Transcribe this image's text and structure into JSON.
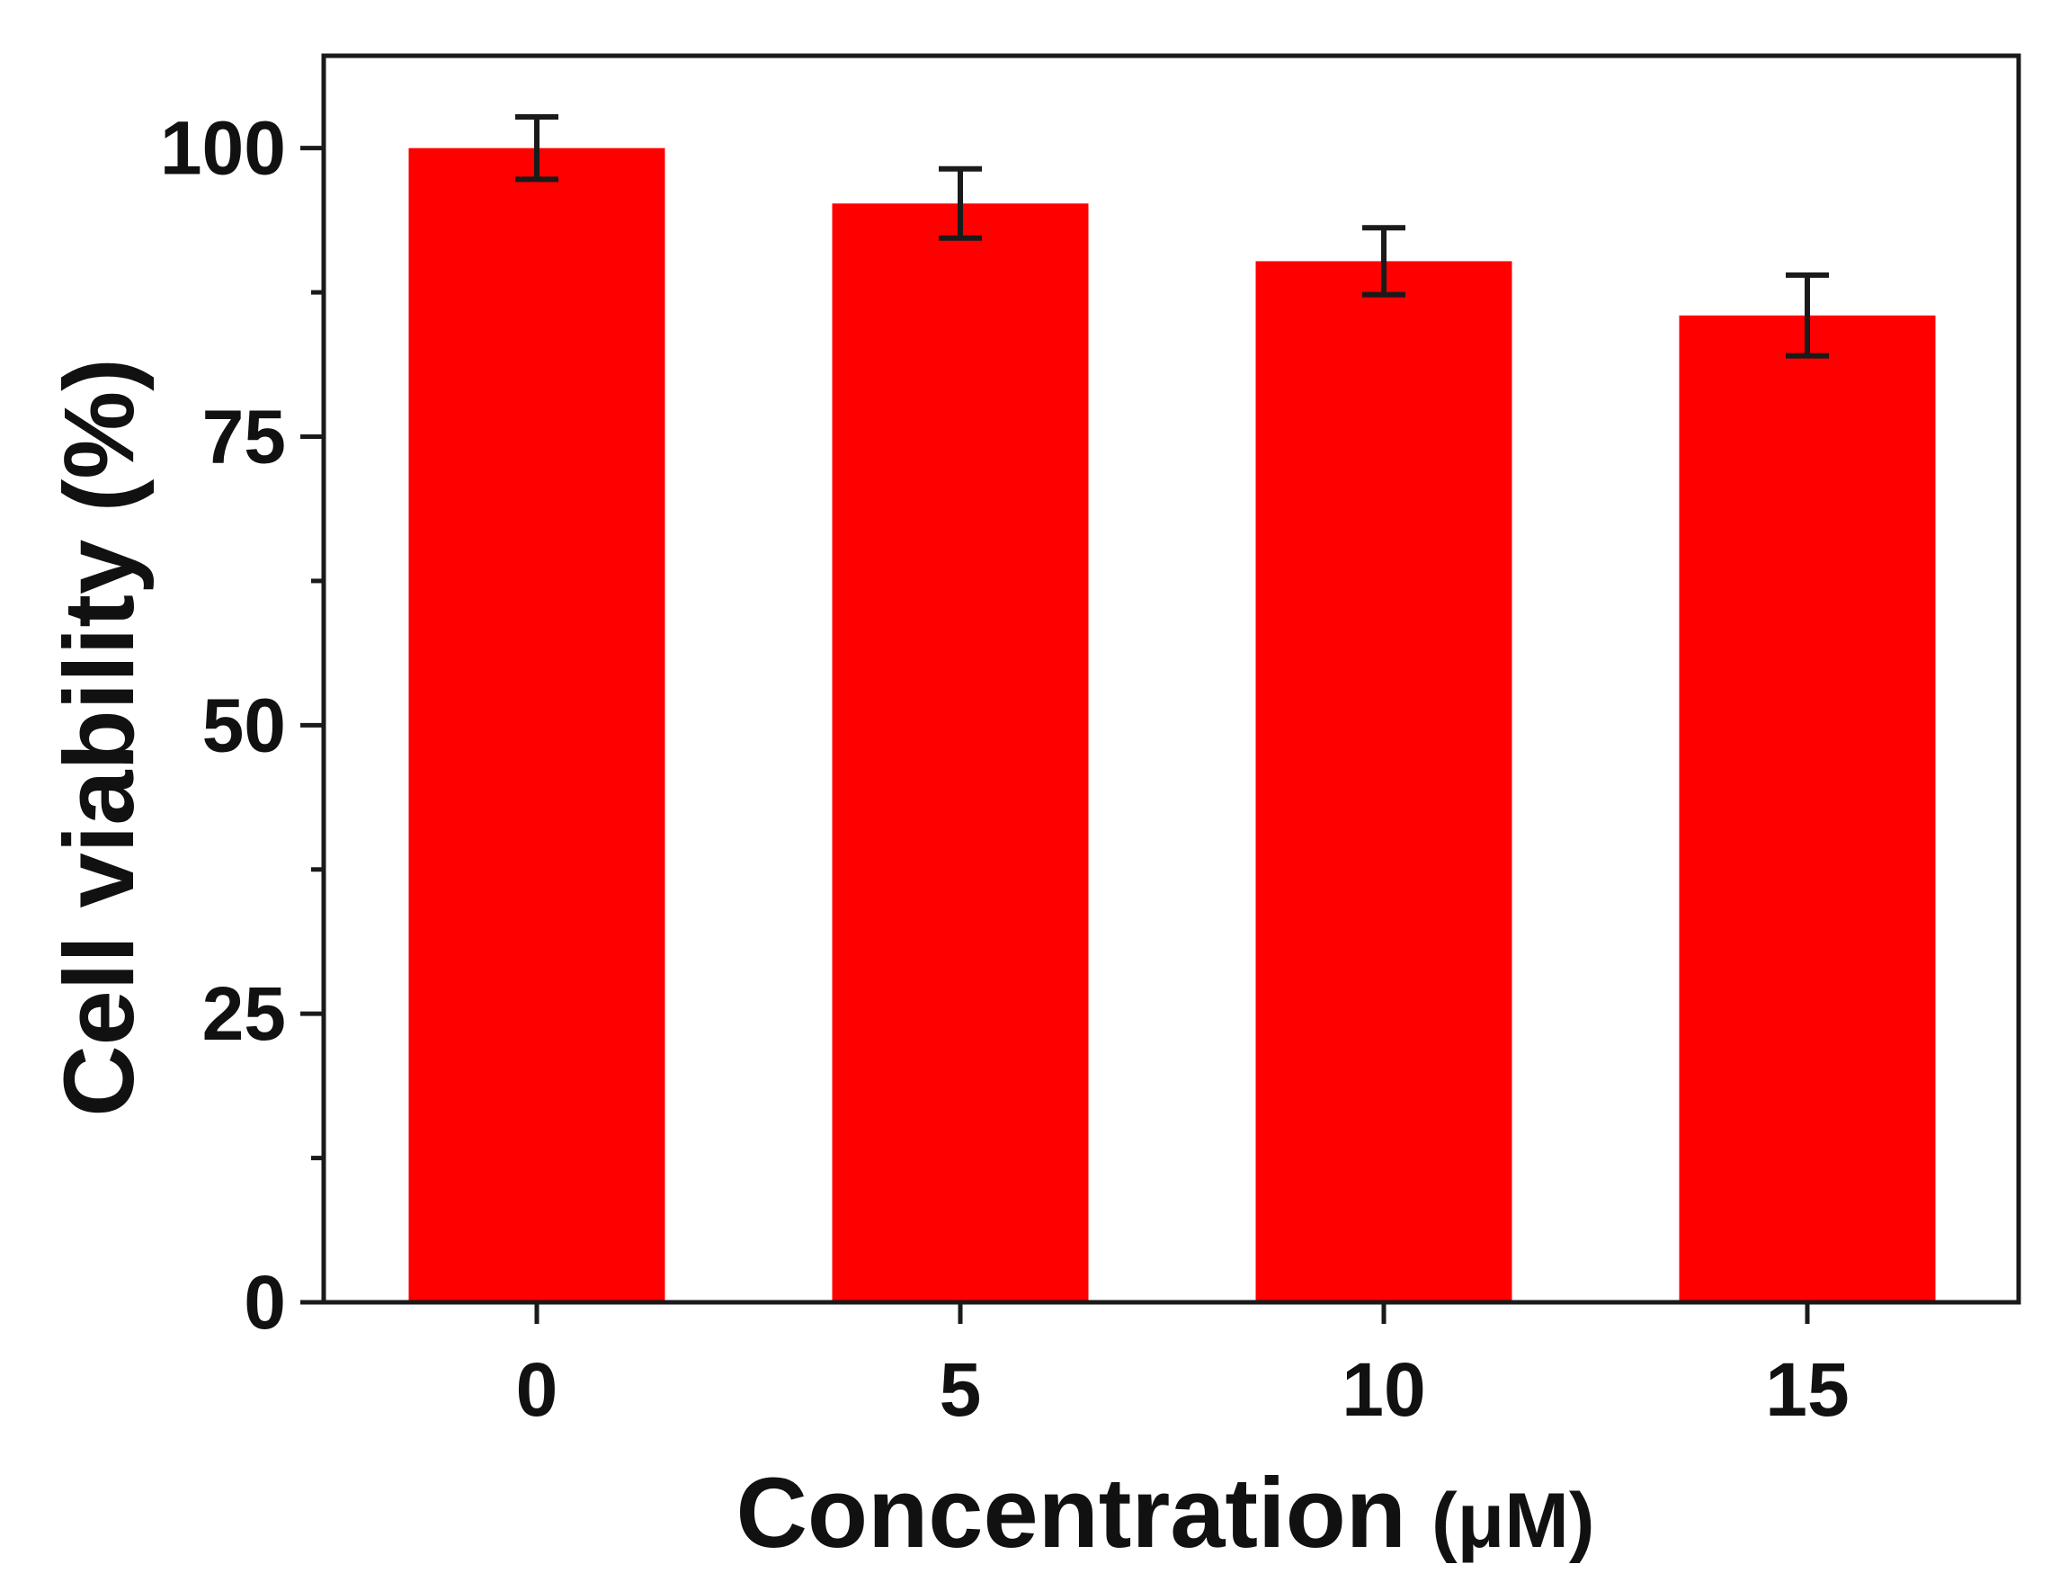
{
  "chart_data": {
    "type": "bar",
    "title": "",
    "xlabel": "Concentration",
    "xlabel_unit": "(μM)",
    "ylabel": "Cell viability (%)",
    "categories": [
      "0",
      "5",
      "10",
      "15"
    ],
    "series": [
      {
        "values": [
          100,
          95.2,
          90.2,
          85.5
        ],
        "errors": [
          2.7,
          3.0,
          2.9,
          3.5
        ]
      }
    ],
    "ylim": [
      0,
      108
    ],
    "yticks": [
      "0",
      "25",
      "50",
      "75",
      "100"
    ],
    "y_minor_step": 12.5,
    "grid": false,
    "legend": "none",
    "colors": {
      "bar": "#fe0000",
      "error_bar": "#1a1a1a",
      "axis": "#1a1a1a",
      "text": "#111111"
    }
  }
}
